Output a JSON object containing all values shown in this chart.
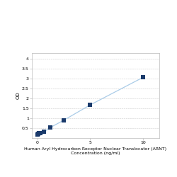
{
  "x_data": [
    0,
    0.078,
    0.156,
    0.313,
    0.625,
    1.25,
    2.5,
    5,
    10
  ],
  "y_data": [
    0.194,
    0.21,
    0.238,
    0.259,
    0.305,
    0.54,
    0.9,
    1.68,
    3.08
  ],
  "line_color": "#aacce8",
  "marker_color": "#1a3a6b",
  "marker_size": 16,
  "xlabel_line1": "Human Aryl Hydrocarbon Receptor Nuclear Translocator (ARNT)",
  "xlabel_line2": "Concentration (ng/ml)",
  "ylabel": "OD",
  "xlim": [
    -0.5,
    11.5
  ],
  "ylim": [
    0.0,
    4.3
  ],
  "yticks": [
    0.5,
    1.0,
    1.5,
    2.0,
    2.5,
    3.0,
    3.5,
    4.0
  ],
  "ytick_labels": [
    "0.5",
    "1",
    "1.5",
    "2",
    "2.5",
    "3",
    "3.5",
    "4"
  ],
  "xticks": [
    0,
    5,
    10
  ],
  "xtick_labels": [
    "0",
    "5",
    "10"
  ],
  "grid_color": "#cccccc",
  "background_color": "#ffffff",
  "axis_fontsize": 4.5,
  "tick_fontsize": 4.5,
  "ylabel_fontsize": 5
}
